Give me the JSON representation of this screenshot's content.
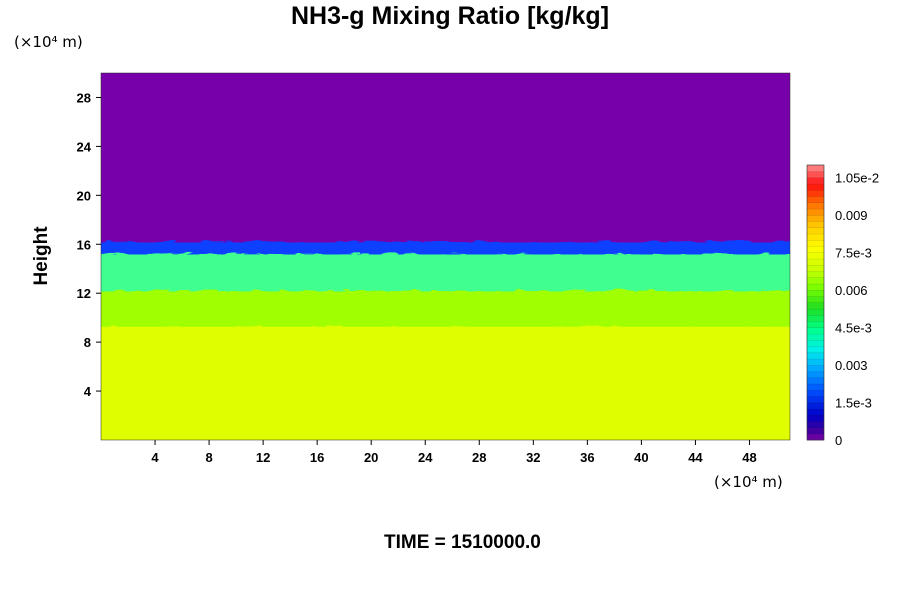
{
  "chart_data": {
    "type": "heatmap",
    "title": "NH3-g Mixing Ratio [kg/kg]",
    "ylabel": "Height",
    "y_unit": "(×10⁴ m)",
    "x_unit": "(×10⁴ m)",
    "footer": "TIME = 1510000.0",
    "xlim": [
      0,
      51
    ],
    "ylim": [
      0,
      30
    ],
    "x_ticks": [
      "4",
      "8",
      "12",
      "16",
      "20",
      "24",
      "28",
      "32",
      "36",
      "40",
      "44",
      "48"
    ],
    "y_ticks": [
      "4",
      "8",
      "12",
      "16",
      "20",
      "24",
      "28"
    ],
    "colorbar": {
      "range": [
        0,
        0.011
      ],
      "tick_labels": [
        "0",
        "1.5e-3",
        "0.003",
        "4.5e-3",
        "0.006",
        "7.5e-3",
        "0.009",
        "1.05e-2"
      ],
      "tick_values": [
        0,
        0.0015,
        0.003,
        0.0045,
        0.006,
        0.0075,
        0.009,
        0.0105
      ]
    },
    "fields": {
      "layers": [
        {
          "height_range": [
            0,
            9.5
          ],
          "value": 0.0077,
          "color": "#dfff00"
        },
        {
          "height_range": [
            9.5,
            12.5
          ],
          "value": 0.0066,
          "color": "#a0ff00"
        },
        {
          "height_range": [
            12.5,
            15.5
          ],
          "value": 0.0045,
          "color": "#40ff90"
        },
        {
          "height_range": [
            15.5,
            16.5
          ],
          "value": 0.0015,
          "color": "#1040ff"
        },
        {
          "height_range": [
            16.5,
            30
          ],
          "value": 0.0,
          "color": "#7700aa"
        }
      ]
    }
  }
}
